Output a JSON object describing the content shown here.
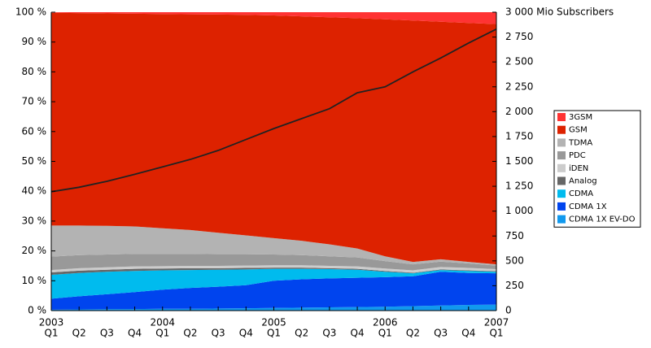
{
  "chart_data": {
    "type": "stacked_area",
    "categories": [
      "Q1",
      "Q2",
      "Q3",
      "Q4",
      "Q1",
      "Q2",
      "Q3",
      "Q4",
      "Q1",
      "Q2",
      "Q3",
      "Q4",
      "Q1",
      "Q2",
      "Q3",
      "Q4",
      "Q1"
    ],
    "years": [
      "2003",
      null,
      null,
      null,
      "2004",
      null,
      null,
      null,
      "2005",
      null,
      null,
      null,
      "2006",
      null,
      null,
      null,
      "2007"
    ],
    "ylim": [
      0,
      100
    ],
    "yticks": [
      {
        "value": 0,
        "label": "0 %"
      },
      {
        "value": 10,
        "label": "10 %"
      },
      {
        "value": 20,
        "label": "20 %"
      },
      {
        "value": 30,
        "label": "30 %"
      },
      {
        "value": 40,
        "label": "40 %"
      },
      {
        "value": 50,
        "label": "50 %"
      },
      {
        "value": 60,
        "label": "60 %"
      },
      {
        "value": 70,
        "label": "70 %"
      },
      {
        "value": 80,
        "label": "80 %"
      },
      {
        "value": 90,
        "label": "90 %"
      },
      {
        "value": 100,
        "label": "100 %"
      }
    ],
    "y2lim": [
      0,
      3000
    ],
    "y2ticks": [
      0,
      250,
      500,
      750,
      {
        "value": 1000,
        "label": "1 000"
      },
      {
        "value": 1250,
        "label": "1 250"
      },
      {
        "value": 1500,
        "label": "1 500"
      },
      {
        "value": 1750,
        "label": "1 750"
      },
      {
        "value": 2000,
        "label": "2 000"
      },
      {
        "value": 2250,
        "label": "2 250"
      },
      {
        "value": 2500,
        "label": "2 500"
      },
      {
        "value": 2750,
        "label": "2 750"
      },
      {
        "value": 3000,
        "label": "3 000 Mio Subscribers"
      }
    ],
    "series": [
      {
        "name": "CDMA 1X EV-DO",
        "color": "#1199ee",
        "values": [
          0.3,
          0.4,
          0.5,
          0.5,
          0.6,
          0.6,
          0.7,
          0.8,
          0.9,
          1.0,
          1.1,
          1.2,
          1.3,
          1.5,
          1.7,
          1.9,
          2.0
        ]
      },
      {
        "name": "CDMA 1X",
        "color": "#0044ee",
        "values": [
          3.7,
          4.4,
          5.0,
          5.7,
          6.4,
          7.0,
          7.3,
          7.7,
          9.1,
          9.5,
          9.7,
          9.8,
          9.9,
          10.0,
          11.3,
          10.7,
          10.5
        ]
      },
      {
        "name": "CDMA",
        "color": "#00bbee",
        "values": [
          8.0,
          7.8,
          7.5,
          7.1,
          6.5,
          6.0,
          5.7,
          5.3,
          4.0,
          3.5,
          3.1,
          2.7,
          1.8,
          1.0,
          0.6,
          0.7,
          0.5
        ]
      },
      {
        "name": "Analog",
        "color": "#666666",
        "values": [
          0.8,
          0.8,
          0.7,
          0.7,
          0.6,
          0.6,
          0.5,
          0.5,
          0.4,
          0.4,
          0.3,
          0.3,
          0.3,
          0.2,
          0.2,
          0.2,
          0.2
        ]
      },
      {
        "name": "iDEN",
        "color": "#cccccc",
        "values": [
          0.8,
          0.8,
          0.8,
          0.8,
          0.8,
          0.8,
          0.8,
          0.8,
          0.8,
          0.8,
          0.8,
          0.8,
          0.8,
          0.8,
          0.8,
          0.8,
          0.7
        ]
      },
      {
        "name": "PDC",
        "color": "#999999",
        "values": [
          4.5,
          4.4,
          4.3,
          4.2,
          4.1,
          4.0,
          3.9,
          3.8,
          3.6,
          3.4,
          3.2,
          3.0,
          2.5,
          2.0,
          1.8,
          1.5,
          1.2
        ]
      },
      {
        "name": "TDMA",
        "color": "#b3b3b3",
        "values": [
          10.4,
          9.9,
          9.6,
          9.2,
          8.6,
          8.0,
          7.2,
          6.3,
          5.5,
          4.8,
          4.0,
          3.0,
          1.6,
          0.8,
          0.8,
          0.5,
          0.4
        ]
      },
      {
        "name": "GSM",
        "color": "#dd2200",
        "values": [
          71.3,
          71.2,
          71.2,
          71.3,
          71.8,
          72.3,
          73.1,
          73.9,
          74.6,
          75.2,
          76.1,
          77.2,
          79.4,
          80.9,
          79.6,
          80.1,
          80.5
        ]
      },
      {
        "name": "3GSM",
        "color": "#ff3333",
        "values": [
          0.2,
          0.3,
          0.4,
          0.5,
          0.6,
          0.7,
          0.8,
          0.9,
          1.1,
          1.4,
          1.7,
          2.0,
          2.4,
          2.8,
          3.2,
          3.6,
          4.0
        ]
      }
    ],
    "line": {
      "axis": "y2",
      "color": "#222222",
      "values": [
        1195,
        1240,
        1300,
        1370,
        1445,
        1520,
        1610,
        1720,
        1830,
        1930,
        2030,
        2190,
        2250,
        2400,
        2540,
        2690,
        2830
      ]
    }
  }
}
